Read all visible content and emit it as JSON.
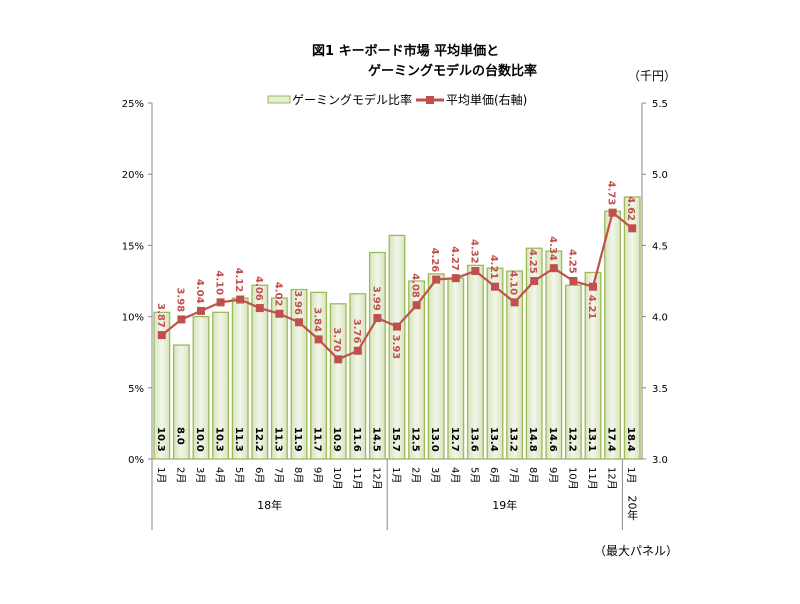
{
  "chart_data": {
    "type": "bar+line",
    "title_line1": "図1 キーボード市場 平均単価と",
    "title_line2": "ゲーミングモデルの台数比率",
    "right_unit": "（千円）",
    "footnote": "（最大パネル）",
    "categories": [
      "1月",
      "2月",
      "3月",
      "4月",
      "5月",
      "6月",
      "7月",
      "8月",
      "9月",
      "10月",
      "11月",
      "12月",
      "1月",
      "2月",
      "3月",
      "4月",
      "5月",
      "6月",
      "7月",
      "8月",
      "9月",
      "10月",
      "11月",
      "12月",
      "1月"
    ],
    "year_groups": [
      {
        "label": "18年",
        "start": 0,
        "end": 11
      },
      {
        "label": "19年",
        "start": 12,
        "end": 23
      },
      {
        "label": "20年",
        "start": 24,
        "end": 24
      }
    ],
    "series": [
      {
        "name": "ゲーミングモデル比率",
        "type": "bar",
        "axis": "left",
        "color": "#9bbb59",
        "fill": "#e6eed6",
        "values": [
          10.3,
          8.0,
          10.0,
          10.3,
          11.3,
          12.2,
          11.3,
          11.9,
          11.7,
          10.9,
          11.6,
          14.5,
          15.7,
          12.5,
          13.0,
          12.7,
          13.6,
          13.4,
          13.2,
          14.8,
          14.6,
          12.2,
          13.1,
          17.4,
          18.4
        ]
      },
      {
        "name": "平均単価(右軸)",
        "type": "line",
        "axis": "right",
        "color": "#c0504d",
        "values": [
          3.87,
          3.98,
          4.04,
          4.1,
          4.12,
          4.06,
          4.02,
          3.96,
          3.84,
          3.7,
          3.76,
          3.99,
          3.93,
          4.08,
          4.26,
          4.27,
          4.32,
          4.21,
          4.1,
          4.25,
          4.34,
          4.25,
          4.21,
          4.73,
          4.62
        ]
      }
    ],
    "left_axis": {
      "min": 0,
      "max": 25,
      "ticks": [
        "0%",
        "5%",
        "10%",
        "15%",
        "20%",
        "25%"
      ]
    },
    "right_axis": {
      "min": 3.0,
      "max": 5.5,
      "ticks": [
        "3.0",
        "3.5",
        "4.0",
        "4.5",
        "5.0",
        "5.5"
      ]
    },
    "legend_position": "top",
    "grid": false
  }
}
